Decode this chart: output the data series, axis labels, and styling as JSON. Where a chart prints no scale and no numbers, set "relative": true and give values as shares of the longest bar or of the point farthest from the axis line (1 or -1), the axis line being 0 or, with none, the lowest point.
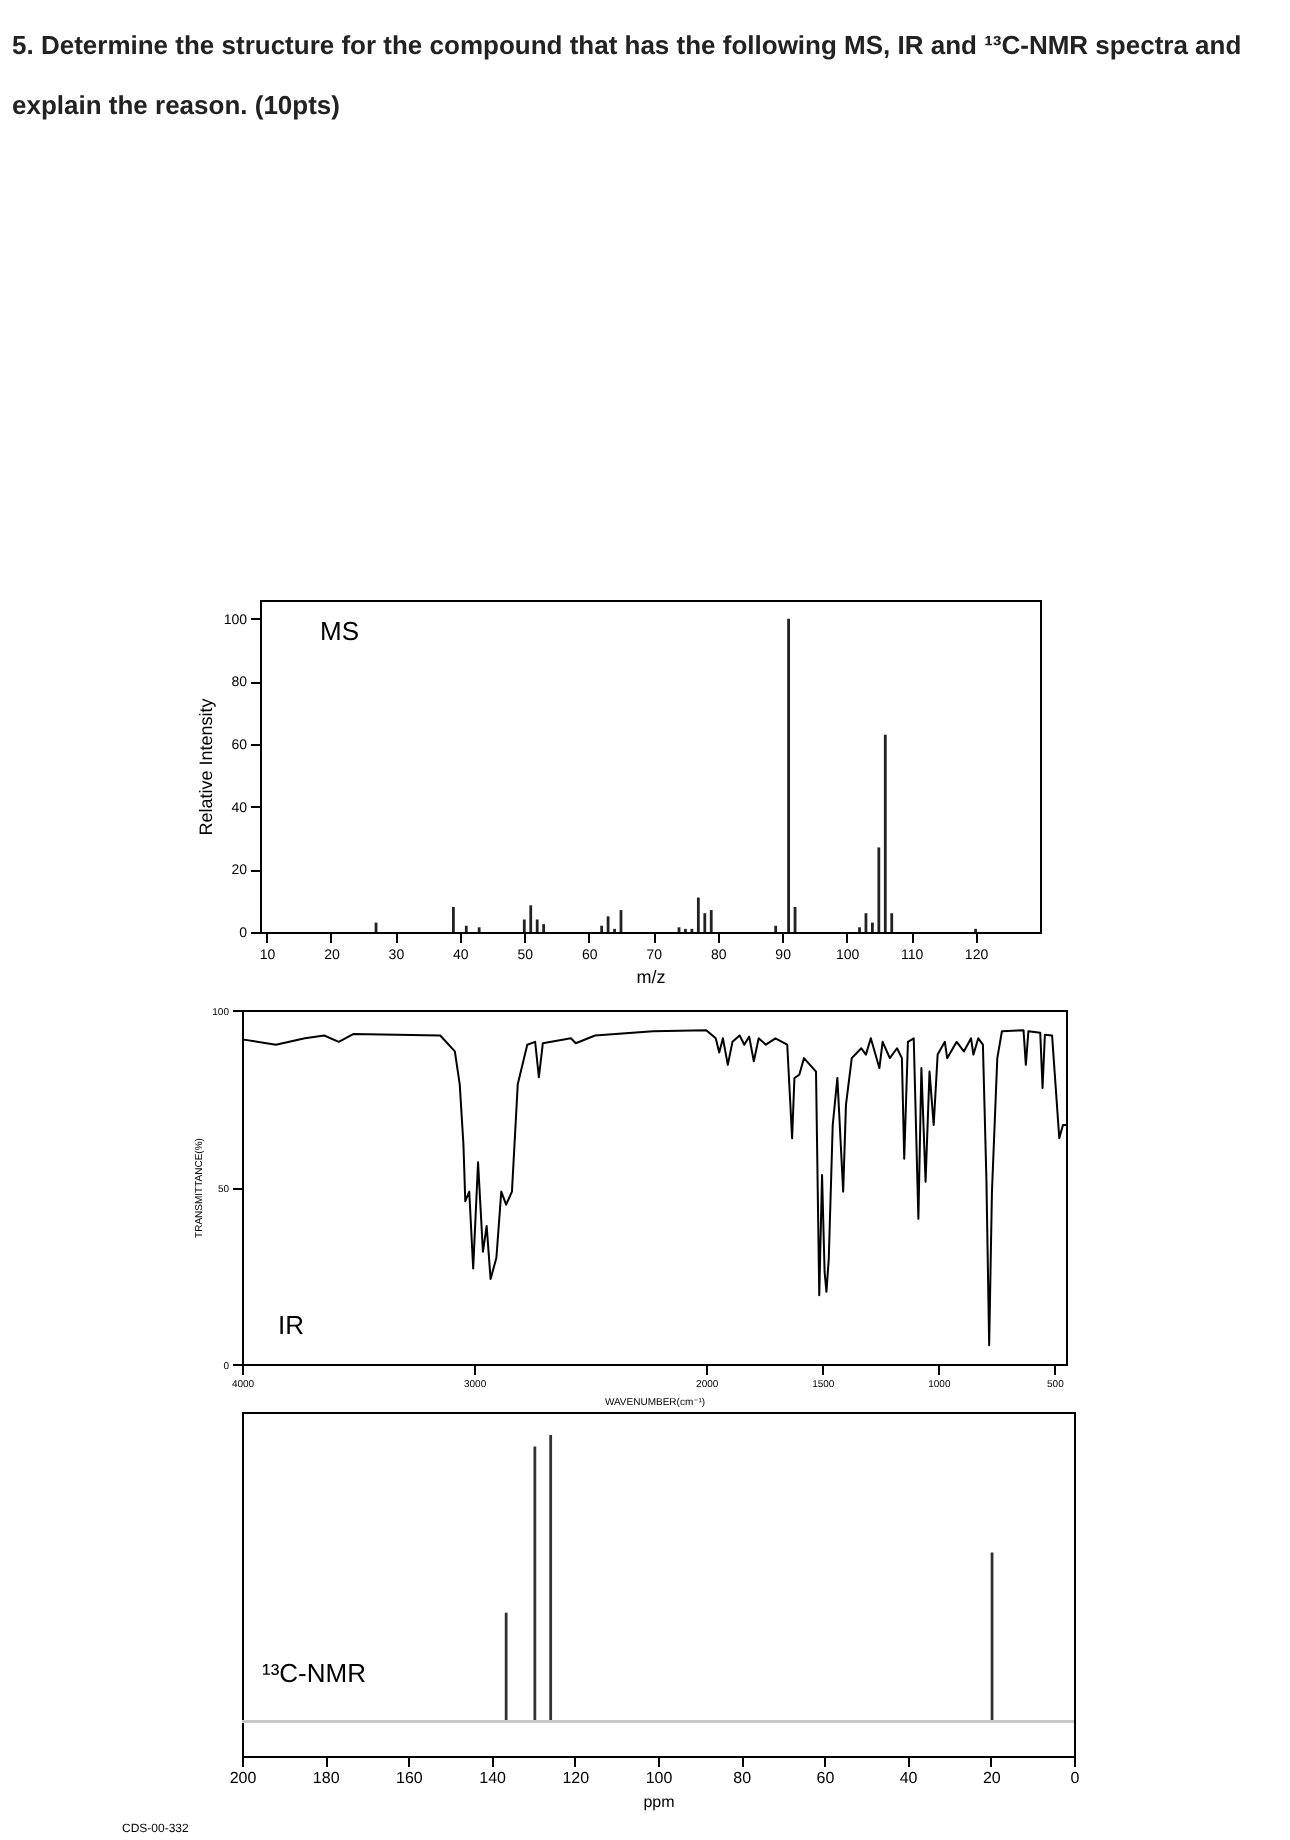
{
  "chart_data": [
    {
      "type": "bar",
      "title": "5. Determine the structure for the compound that has the following MS, IR and ¹³C-NMR spectra and explain the reason. (10pts)",
      "xlabel": "m/z",
      "ylabel": "Relative Intensity",
      "annotations": [
        "MS"
      ],
      "color": "#222222",
      "grid": false,
      "x": [
        27,
        39,
        41,
        43,
        50,
        51,
        52,
        53,
        62,
        63,
        64,
        65,
        74,
        75,
        76,
        77,
        78,
        79,
        89,
        91,
        92,
        102,
        103,
        104,
        105,
        106,
        107,
        120
      ],
      "values": [
        3,
        8,
        2,
        1.5,
        4,
        8.5,
        4,
        2.5,
        2,
        5,
        1,
        7,
        1.5,
        1,
        1,
        11,
        6,
        7,
        2,
        100,
        8,
        1.5,
        6,
        3,
        27,
        63,
        6,
        1
      ],
      "xlim": [
        9,
        130
      ],
      "xticks": [
        10,
        20,
        30,
        40,
        50,
        60,
        70,
        80,
        90,
        100,
        110,
        120
      ],
      "ylim": [
        0,
        106
      ],
      "yticks": [
        0,
        20,
        40,
        60,
        80,
        100
      ]
    },
    {
      "type": "line",
      "xlabel": "WAVENUMBER(cm⁻¹)",
      "ylabel": "TRANSMITTANCE(%)",
      "annotations": [
        "IR"
      ],
      "color": "#000000",
      "grid": false,
      "x": [
        4000,
        3854,
        3729,
        3646,
        3583,
        3521,
        3146,
        3083,
        3062,
        3046,
        3038,
        3021,
        3004,
        2983,
        2962,
        2946,
        2929,
        2904,
        2883,
        2862,
        2837,
        2812,
        2771,
        2737,
        2721,
        2704,
        2583,
        2562,
        2479,
        2229,
        2000,
        1959,
        1944,
        1928,
        1907,
        1887,
        1856,
        1836,
        1815,
        1795,
        1774,
        1743,
        1702,
        1651,
        1630,
        1620,
        1599,
        1579,
        1527,
        1513,
        1501,
        1490,
        1482,
        1472,
        1455,
        1435,
        1410,
        1398,
        1373,
        1332,
        1312,
        1291,
        1254,
        1240,
        1209,
        1178,
        1157,
        1147,
        1131,
        1106,
        1086,
        1073,
        1055,
        1038,
        1020,
        1003,
        972,
        962,
        921,
        890,
        859,
        849,
        828,
        808,
        793,
        781,
        769,
        746,
        726,
        633,
        623,
        612,
        561,
        551,
        541,
        510,
        479,
        463,
        450
      ],
      "values": [
        91.7,
        90.2,
        92,
        92.8,
        91,
        93.2,
        92.8,
        88.3,
        79,
        62,
        46,
        48.7,
        27,
        57,
        31.7,
        39,
        24,
        30,
        48.7,
        45,
        48.7,
        79,
        90.2,
        91,
        81,
        90.6,
        92,
        90.6,
        92.8,
        94,
        94.3,
        92,
        88,
        92,
        84.5,
        91,
        92.8,
        90.2,
        92.5,
        85.5,
        92,
        90.2,
        92,
        90.2,
        63.8,
        80.8,
        81.7,
        86.4,
        82.6,
        19.4,
        53.4,
        26,
        20.4,
        29.8,
        67.5,
        80.8,
        48.7,
        73.2,
        86.4,
        89.2,
        87.4,
        92,
        83.6,
        91,
        86.4,
        89.2,
        86.4,
        58,
        91,
        92,
        41,
        83.6,
        51.5,
        82.6,
        67.5,
        87.4,
        91,
        86.4,
        91,
        88.3,
        92,
        87.4,
        92,
        90.2,
        52.5,
        5.3,
        48.7,
        86.4,
        94,
        94.3,
        84.5,
        94,
        93.6,
        78,
        93,
        92.8,
        63.8,
        67.5,
        67.5
      ],
      "xlim": [
        4000,
        450
      ],
      "xticks": [
        4000,
        3000,
        2000,
        1500,
        1000,
        500
      ],
      "ylim": [
        0,
        100
      ],
      "yticks": [
        0,
        50,
        100
      ]
    },
    {
      "type": "bar",
      "xlabel": "ppm",
      "annotations": [
        "¹³C-NMR",
        "CDS-00-332"
      ],
      "color": "#333333",
      "relative": true,
      "grid": false,
      "x": [
        136.5,
        129.6,
        125.8,
        19.7
      ],
      "values": [
        0.38,
        0.96,
        1,
        0.59
      ],
      "xlim": [
        200,
        0
      ],
      "xticks": [
        200,
        180,
        160,
        140,
        120,
        100,
        80,
        60,
        40,
        20,
        0
      ],
      "ref_lines": [
        {
          "axis": "y",
          "value": 0,
          "color": "#c8c8c8"
        }
      ]
    }
  ]
}
